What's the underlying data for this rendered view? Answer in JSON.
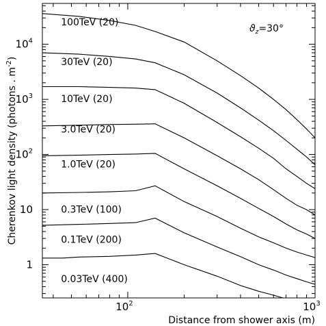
{
  "chart_data": {
    "type": "line",
    "xlabel": "Distance from shower axis (m)",
    "ylabel": "Cherenkov light density (photons . m",
    "ylabel_sup": "-2",
    "ylabel_close": ")",
    "annotation": {
      "base": "ϑ",
      "sub": "z",
      "rest": "=30°"
    },
    "x_scale": "log",
    "y_scale": "log",
    "xlim": [
      35,
      1000
    ],
    "ylim": [
      0.25,
      55000
    ],
    "grid": false,
    "x_ticks": [
      {
        "value": 100,
        "base": "10",
        "exp": "2"
      },
      {
        "value": 1000,
        "base": "10",
        "exp": "3"
      }
    ],
    "y_ticks": [
      {
        "value": 1,
        "base": "1",
        "exp": ""
      },
      {
        "value": 10,
        "base": "10",
        "exp": ""
      },
      {
        "value": 100,
        "base": "10",
        "exp": "2"
      },
      {
        "value": 1000,
        "base": "10",
        "exp": "3"
      },
      {
        "value": 10000,
        "base": "10",
        "exp": "4"
      }
    ],
    "series": [
      {
        "name": "100TeV (20)",
        "label_xy": [
          44,
          22000
        ],
        "x": [
          35,
          55,
          80,
          110,
          140,
          200,
          300,
          400,
          500,
          600,
          700,
          800,
          900,
          1000
        ],
        "y": [
          36000,
          32000,
          27000,
          22000,
          17000,
          11000,
          5000,
          2700,
          1600,
          1000,
          650,
          430,
          290,
          200
        ]
      },
      {
        "name": "30TeV (20)",
        "label_xy": [
          44,
          4200
        ],
        "x": [
          35,
          55,
          80,
          110,
          140,
          200,
          300,
          400,
          500,
          600,
          700,
          800,
          900,
          1000
        ],
        "y": [
          7000,
          6600,
          6000,
          5400,
          4600,
          2800,
          1300,
          700,
          420,
          270,
          180,
          125,
          90,
          65
        ]
      },
      {
        "name": "10TeV (20)",
        "label_xy": [
          44,
          900
        ],
        "x": [
          35,
          55,
          80,
          110,
          140,
          200,
          300,
          400,
          500,
          600,
          700,
          800,
          900,
          1000
        ],
        "y": [
          1700,
          1700,
          1650,
          1600,
          1500,
          850,
          380,
          210,
          130,
          85,
          55,
          40,
          30,
          24
        ]
      },
      {
        "name": "3.0TeV (20)",
        "label_xy": [
          44,
          250
        ],
        "x": [
          35,
          55,
          80,
          110,
          140,
          200,
          300,
          400,
          500,
          600,
          700,
          800,
          900,
          1000
        ],
        "y": [
          330,
          340,
          350,
          355,
          360,
          200,
          95,
          55,
          35,
          23,
          16,
          12,
          10,
          8
        ]
      },
      {
        "name": "1.0TeV (20)",
        "label_xy": [
          44,
          58
        ],
        "x": [
          35,
          55,
          80,
          110,
          140,
          200,
          300,
          400,
          500,
          600,
          700,
          800,
          900,
          1000
        ],
        "y": [
          95,
          97,
          100,
          102,
          105,
          55,
          27,
          16,
          10.5,
          7.5,
          5.5,
          4.3,
          3.6,
          3.0
        ]
      },
      {
        "name": "0.3TeV (100)",
        "label_xy": [
          44,
          8.8
        ],
        "x": [
          35,
          55,
          80,
          110,
          140,
          200,
          300,
          400,
          500,
          600,
          700,
          800,
          900,
          1000
        ],
        "y": [
          20,
          20.5,
          21,
          22,
          27,
          14,
          7.5,
          4.6,
          3.2,
          2.5,
          2.0,
          1.7,
          1.5,
          1.35
        ]
      },
      {
        "name": "0.1TeV (200)",
        "label_xy": [
          44,
          2.5
        ],
        "x": [
          35,
          55,
          80,
          110,
          140,
          200,
          300,
          400,
          500,
          600,
          700,
          800,
          900,
          1000
        ],
        "y": [
          5.2,
          5.4,
          5.6,
          5.8,
          7.0,
          3.8,
          2.1,
          1.4,
          1.0,
          0.8,
          0.65,
          0.56,
          0.49,
          0.44
        ]
      },
      {
        "name": "0.03TeV (400)",
        "label_xy": [
          44,
          0.48
        ],
        "x": [
          35,
          45,
          55,
          80,
          110,
          140,
          200,
          300,
          400,
          500,
          600,
          700
        ],
        "y": [
          1.32,
          1.32,
          1.38,
          1.42,
          1.5,
          1.6,
          1.0,
          0.62,
          0.42,
          0.33,
          0.28,
          0.24
        ]
      }
    ]
  }
}
